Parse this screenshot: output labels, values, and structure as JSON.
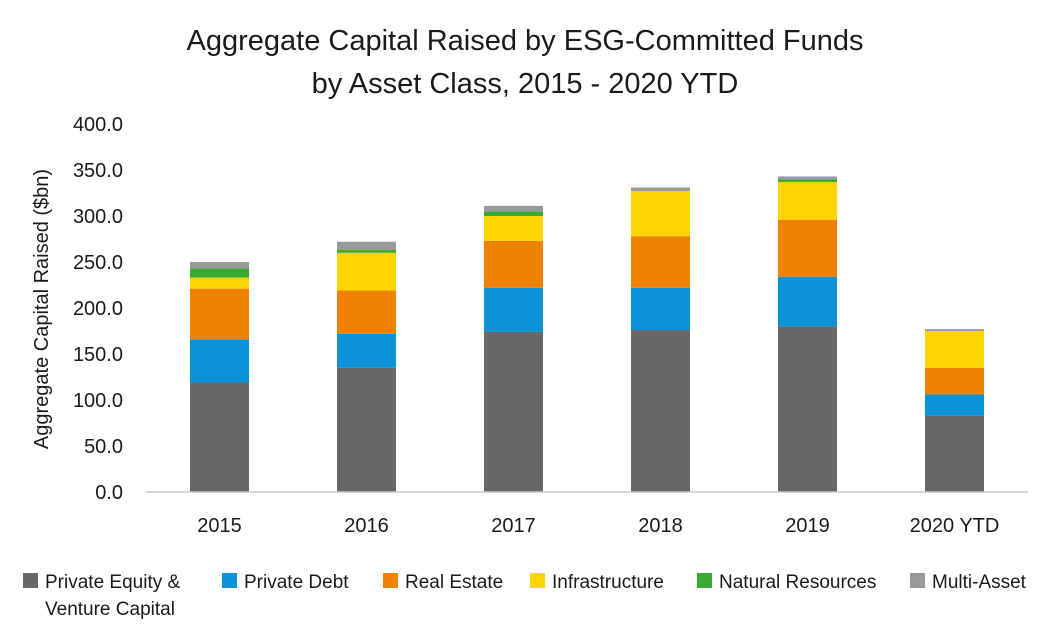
{
  "chart_data": {
    "type": "bar",
    "stacked": true,
    "title": "Aggregate Capital Raised by ESG-Committed Funds by Asset Class, 2015 - 2020 YTD",
    "title_lines": [
      "Aggregate Capital Raised by ESG-Committed Funds",
      "by Asset Class, 2015 - 2020 YTD"
    ],
    "xlabel": "",
    "ylabel": "Aggregate Capital Raised ($bn)",
    "ylim": [
      0,
      400
    ],
    "yticks": [
      "0.0",
      "50.0",
      "100.0",
      "150.0",
      "200.0",
      "250.0",
      "300.0",
      "350.0",
      "400.0"
    ],
    "grid": false,
    "legend_position": "bottom",
    "categories": [
      "2015",
      "2016",
      "2017",
      "2018",
      "2019",
      "2020 YTD"
    ],
    "series": [
      {
        "name": "Private Equity & Venture Capital",
        "name_lines": [
          "Private Equity &",
          "Venture Capital"
        ],
        "color": "#676767",
        "values": [
          119,
          135,
          174,
          176,
          180,
          83
        ]
      },
      {
        "name": "Private Debt",
        "name_lines": [
          "Private Debt"
        ],
        "color": "#0b93d8",
        "values": [
          47,
          37,
          48,
          46,
          54,
          23
        ]
      },
      {
        "name": "Real Estate",
        "name_lines": [
          "Real Estate"
        ],
        "color": "#ef8200",
        "values": [
          55,
          47,
          51,
          56,
          62,
          29
        ]
      },
      {
        "name": "Infrastructure",
        "name_lines": [
          "Infrastructure"
        ],
        "color": "#ffd500",
        "values": [
          12,
          41,
          27,
          49,
          41,
          40
        ]
      },
      {
        "name": "Natural Resources",
        "name_lines": [
          "Natural Resources"
        ],
        "color": "#3aa935",
        "values": [
          10,
          3,
          5,
          0,
          3,
          0
        ]
      },
      {
        "name": "Multi-Asset",
        "name_lines": [
          "Multi-Asset"
        ],
        "color": "#999999",
        "values": [
          7,
          9,
          6,
          4,
          3,
          2
        ]
      }
    ]
  }
}
